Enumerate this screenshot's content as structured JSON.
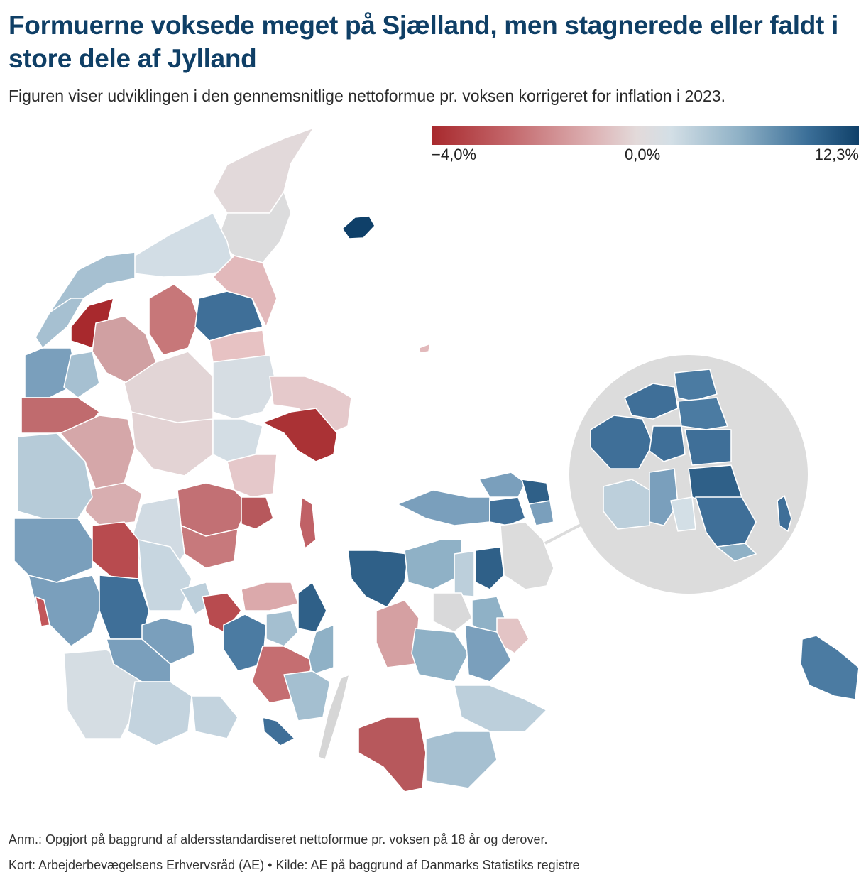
{
  "title": "Formuerne voksede meget på Sjælland, men stagnerede eller faldt i store dele af Jylland",
  "subtitle": "Figuren viser udviklingen i den gennemsnitlige nettoformue pr. voksen korrigeret for inflation i 2023.",
  "legend": {
    "min_label": "−4,0%",
    "mid_label": "0,0%",
    "max_label": "12,3%",
    "min_value": -4.0,
    "mid_value": 0.0,
    "max_value": 12.3,
    "colors": [
      "#a8292d",
      "#c3666a",
      "#ddb3b5",
      "#e3dada",
      "#d3dfe6",
      "#8fb1c6",
      "#3b6f98",
      "#0f4069"
    ]
  },
  "map": {
    "land_background_color": "#dcdcdc",
    "water_color": "#ffffff"
  },
  "notes": {
    "anm": "Anm.: Opgjort på baggrund af aldersstandardiseret nettoformue pr. voksen på 18 år og derover.",
    "kilde": "Kort: Arbejderbevægelsens Erhvervsråd (AE) • Kilde: AE på baggrund af Danmarks Statistiks registre"
  }
}
